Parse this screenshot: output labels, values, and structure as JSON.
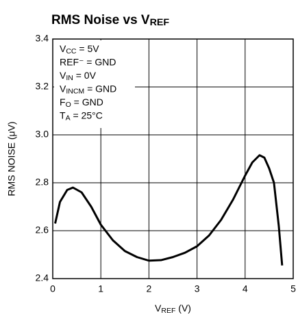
{
  "chart_data": {
    "type": "line",
    "title": [
      "RMS Noise vs V",
      "REF"
    ],
    "x_label": [
      "V",
      "REF",
      " (V)"
    ],
    "y_label": "RMS NOISE (μV)",
    "annotations": [
      [
        "V",
        "CC",
        " = 5V"
      ],
      [
        "REF⁻ = GND"
      ],
      [
        "V",
        "IN",
        " = 0V"
      ],
      [
        "V",
        "INCM",
        " = GND"
      ],
      [
        "F",
        "O",
        " = GND"
      ],
      [
        "T",
        "A",
        " = 25°C"
      ]
    ],
    "x": [
      0.05,
      0.15,
      0.3,
      0.42,
      0.6,
      0.8,
      1.0,
      1.25,
      1.5,
      1.75,
      2.0,
      2.25,
      2.5,
      2.75,
      3.0,
      3.25,
      3.5,
      3.75,
      4.0,
      4.15,
      4.3,
      4.4,
      4.5,
      4.6,
      4.7,
      4.77
    ],
    "series": [
      {
        "color": "#000000",
        "values": [
          2.63,
          2.72,
          2.77,
          2.78,
          2.76,
          2.7,
          2.625,
          2.56,
          2.515,
          2.49,
          2.475,
          2.477,
          2.49,
          2.508,
          2.535,
          2.58,
          2.645,
          2.73,
          2.83,
          2.885,
          2.915,
          2.905,
          2.86,
          2.8,
          2.62,
          2.455
        ]
      }
    ],
    "xlim": [
      0,
      5
    ],
    "xticks": [
      0,
      1,
      2,
      3,
      4,
      5
    ],
    "ylim": [
      2.4,
      3.4
    ],
    "yticks": [
      2.4,
      2.6,
      2.8,
      {
        "value": 3,
        "label": "3.0"
      },
      3.2,
      3.4
    ],
    "grid": true
  }
}
